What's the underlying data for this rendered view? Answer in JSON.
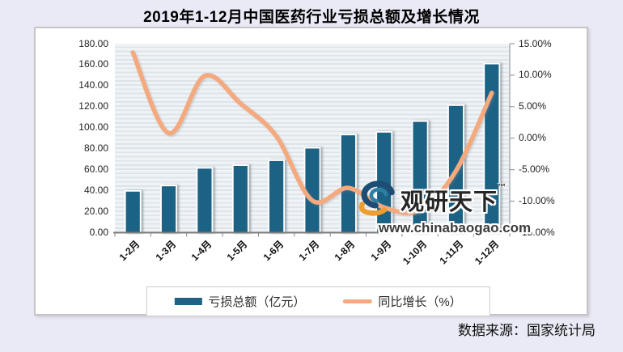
{
  "page": {
    "title": "2019年1-12月中国医药行业亏损总额及增长情况",
    "source": "数据来源：国家统计局"
  },
  "watermark": {
    "brand": "观研天下",
    "tm": "™",
    "url": "www.chinabaogao.com",
    "logo": "swirl-eye-logo",
    "logo_colors": {
      "navy": "#1d4d74",
      "teal": "#2d7fa3",
      "orange": "#EE9D2E"
    }
  },
  "chart_data": {
    "type": "bar",
    "subtype": "combo-bar-line",
    "categories": [
      "1-2月",
      "1-3月",
      "1-4月",
      "1-5月",
      "1-6月",
      "1-7月",
      "1-8月",
      "1-9月",
      "1-10月",
      "1-11月",
      "1-12月"
    ],
    "series": [
      {
        "name": "亏损总额（亿元）",
        "type": "bar",
        "axis": "left",
        "color": "#1E6285",
        "values": [
          39.8,
          44.9,
          61.7,
          64.3,
          69.0,
          80.9,
          93.4,
          96.0,
          106.2,
          121.5,
          161.0
        ]
      },
      {
        "name": "同比增长（%）",
        "type": "line",
        "axis": "right",
        "color": "#F5A97E",
        "values": [
          13.6,
          0.8,
          9.9,
          5.5,
          0.3,
          -9.9,
          -7.9,
          -11.0,
          -11.4,
          -5.2,
          7.2
        ]
      }
    ],
    "title": "2019年1-12月中国医药行业亏损总额及增长情况",
    "xlabel": "",
    "ylabel_left": "亏损总额（亿元）",
    "ylabel_right": "同比增长（%）",
    "left_axis": {
      "min": 0,
      "max": 180,
      "step": 20,
      "tick_labels": [
        "180.00",
        "160.00",
        "140.00",
        "120.00",
        "100.00",
        "80.00",
        "60.00",
        "40.00",
        "20.00",
        "0.00"
      ]
    },
    "right_axis": {
      "min": -15,
      "max": 15,
      "step": 5,
      "tick_labels": [
        "15.00%",
        "10.00%",
        "5.00%",
        "0.00%",
        "-5.00%",
        "-10.00%",
        "-15.00%"
      ]
    },
    "legend_position": "bottom",
    "grid": "horizontal-stripes"
  }
}
